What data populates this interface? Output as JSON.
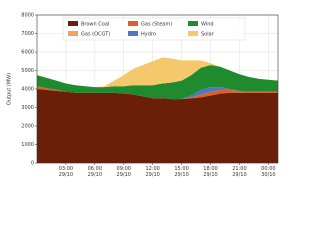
{
  "chart_data": {
    "type": "stacked_area",
    "y_label": "Output (MW)",
    "x": [
      0,
      1,
      2,
      3,
      4,
      5,
      6,
      7,
      8,
      9,
      10,
      11,
      12,
      13,
      14,
      15,
      16,
      17,
      18,
      19,
      20,
      21,
      22,
      23,
      24,
      25
    ],
    "xlim": [
      0,
      25
    ],
    "xticks": [
      {
        "value": 3,
        "label": "03:00\n29/10"
      },
      {
        "value": 6,
        "label": "06:00\n29/10"
      },
      {
        "value": 9,
        "label": "09:00\n29/10"
      },
      {
        "value": 12,
        "label": "12:00\n29/10"
      },
      {
        "value": 15,
        "label": "15:00\n29/10"
      },
      {
        "value": 18,
        "label": "18:00\n29/10"
      },
      {
        "value": 21,
        "label": "21:00\n29/10"
      },
      {
        "value": 24,
        "label": "00:00\n30/10"
      }
    ],
    "ylim": [
      0,
      8000
    ],
    "yticks": [
      0,
      1000,
      2000,
      3000,
      4000,
      5000,
      6000,
      7000,
      8000
    ],
    "grid": true,
    "series": [
      {
        "name": "Brown Coal",
        "color": "#6b1e08",
        "values": [
          4000,
          3950,
          3900,
          3850,
          3800,
          3800,
          3800,
          3800,
          3800,
          3750,
          3700,
          3600,
          3500,
          3500,
          3450,
          3450,
          3500,
          3550,
          3650,
          3750,
          3800,
          3800,
          3800,
          3800,
          3800,
          3800
        ]
      },
      {
        "name": "Gas (Steam)",
        "color": "#d9622b",
        "values": [
          150,
          100,
          50,
          0,
          0,
          0,
          0,
          0,
          0,
          0,
          0,
          0,
          0,
          0,
          0,
          0,
          50,
          150,
          200,
          200,
          150,
          100,
          50,
          50,
          50,
          50
        ]
      },
      {
        "name": "Hydro",
        "color": "#4a78c2",
        "values": [
          0,
          0,
          0,
          0,
          0,
          0,
          0,
          0,
          0,
          0,
          0,
          0,
          0,
          0,
          0,
          0,
          100,
          250,
          250,
          150,
          50,
          0,
          0,
          0,
          0,
          0
        ]
      },
      {
        "name": "Gas (OCGT)",
        "color": "#f2a25c",
        "values": [
          0,
          0,
          0,
          0,
          0,
          0,
          0,
          0,
          0,
          0,
          0,
          0,
          0,
          0,
          0,
          0,
          0,
          0,
          0,
          0,
          0,
          0,
          0,
          0,
          0,
          0
        ]
      },
      {
        "name": "Wind",
        "color": "#1f8a2e",
        "values": [
          600,
          550,
          500,
          450,
          400,
          350,
          300,
          300,
          350,
          400,
          500,
          600,
          700,
          800,
          900,
          1000,
          1100,
          1200,
          1200,
          1100,
          1000,
          900,
          800,
          700,
          650,
          600
        ]
      },
      {
        "name": "Solar",
        "color": "#f5c96b",
        "values": [
          0,
          0,
          0,
          0,
          0,
          0,
          0,
          50,
          300,
          600,
          900,
          1100,
          1300,
          1400,
          1300,
          1100,
          800,
          400,
          100,
          0,
          0,
          0,
          0,
          0,
          0,
          0
        ]
      }
    ]
  }
}
